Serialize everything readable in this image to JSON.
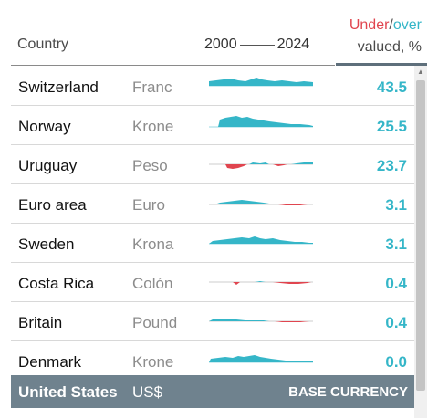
{
  "header": {
    "country_label": "Country",
    "year_start": "2000",
    "year_end": "2024",
    "under_label": "Under",
    "slash": "/",
    "over_label": "over",
    "valued_label": "valued, %"
  },
  "rows": [
    {
      "country": "Switzerland",
      "currency": "Franc",
      "value": "43.5"
    },
    {
      "country": "Norway",
      "currency": "Krone",
      "value": "25.5"
    },
    {
      "country": "Uruguay",
      "currency": "Peso",
      "value": "23.7"
    },
    {
      "country": "Euro area",
      "currency": "Euro",
      "value": "3.1"
    },
    {
      "country": "Sweden",
      "currency": "Krona",
      "value": "3.1"
    },
    {
      "country": "Costa Rica",
      "currency": "Colón",
      "value": "0.4"
    },
    {
      "country": "Britain",
      "currency": "Pound",
      "value": "0.4"
    },
    {
      "country": "Denmark",
      "currency": "Krone",
      "value": "0.0"
    }
  ],
  "base": {
    "country": "United States",
    "currency": "US$",
    "label": "BASE CURRENCY"
  },
  "colors": {
    "over": "#35b6c8",
    "under": "#e0454f",
    "base_row": "#6f828e"
  },
  "icons": {
    "scroll_up": "triangle-up-icon"
  }
}
